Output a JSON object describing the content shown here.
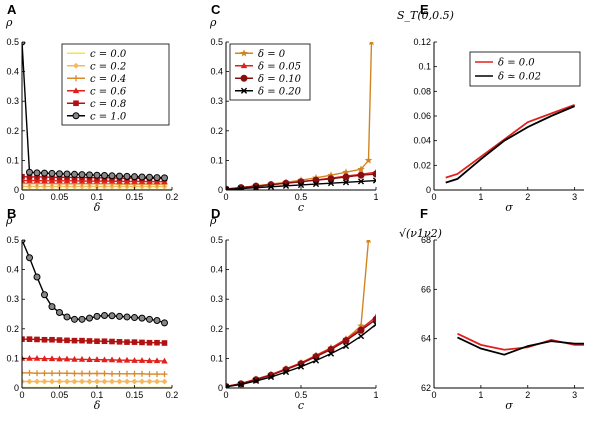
{
  "chart_data": [
    {
      "panel": "A",
      "type": "line",
      "ylabel": "ρ",
      "xlabel": "δ",
      "xlim": [
        0,
        0.2
      ],
      "ylim": [
        0,
        0.5
      ],
      "xticks": [
        0,
        0.05,
        0.1,
        0.15,
        0.2
      ],
      "xtick_labels": [
        "0",
        "0.05",
        "0.1",
        "0.15",
        "0.2"
      ],
      "yticks": [
        0,
        0.1,
        0.2,
        0.3,
        0.4,
        0.5
      ],
      "ytick_labels": [
        "0",
        "0.1",
        "0.2",
        "0.3",
        "0.4",
        "0.5"
      ],
      "legend": "top-right",
      "series": [
        {
          "name": "c = 0.0",
          "color": "#f5e63c",
          "marker": "none",
          "x": [
            0,
            0.005,
            0.2
          ],
          "y": [
            0.001,
            0.001,
            0.001
          ]
        },
        {
          "name": "c = 0.2",
          "color": "#f4b860",
          "marker": "diamond",
          "x": [
            0,
            0.01,
            0.02,
            0.03,
            0.04,
            0.05,
            0.06,
            0.07,
            0.08,
            0.09,
            0.1,
            0.11,
            0.12,
            0.13,
            0.14,
            0.15,
            0.16,
            0.17,
            0.18,
            0.19
          ],
          "y": [
            0.012,
            0.012,
            0.012,
            0.012,
            0.012,
            0.012,
            0.012,
            0.012,
            0.012,
            0.012,
            0.012,
            0.012,
            0.012,
            0.012,
            0.012,
            0.012,
            0.012,
            0.012,
            0.012,
            0.012
          ]
        },
        {
          "name": "c = 0.4",
          "color": "#d98b2b",
          "marker": "plus",
          "x": [
            0,
            0.01,
            0.02,
            0.03,
            0.04,
            0.05,
            0.06,
            0.07,
            0.08,
            0.09,
            0.1,
            0.11,
            0.12,
            0.13,
            0.14,
            0.15,
            0.16,
            0.17,
            0.18,
            0.19
          ],
          "y": [
            0.022,
            0.022,
            0.022,
            0.022,
            0.022,
            0.021,
            0.021,
            0.021,
            0.021,
            0.021,
            0.021,
            0.021,
            0.021,
            0.02,
            0.02,
            0.02,
            0.02,
            0.02,
            0.02,
            0.02
          ]
        },
        {
          "name": "c = 0.6",
          "color": "#e0201b",
          "marker": "triangle",
          "x": [
            0,
            0.01,
            0.02,
            0.03,
            0.04,
            0.05,
            0.06,
            0.07,
            0.08,
            0.09,
            0.1,
            0.11,
            0.12,
            0.13,
            0.14,
            0.15,
            0.16,
            0.17,
            0.18,
            0.19
          ],
          "y": [
            0.032,
            0.032,
            0.032,
            0.031,
            0.031,
            0.031,
            0.031,
            0.031,
            0.03,
            0.03,
            0.03,
            0.03,
            0.03,
            0.029,
            0.029,
            0.029,
            0.029,
            0.028,
            0.028,
            0.028
          ]
        },
        {
          "name": "c = 0.8",
          "color": "#b01212",
          "marker": "square",
          "x": [
            0,
            0.01,
            0.02,
            0.03,
            0.04,
            0.05,
            0.06,
            0.07,
            0.08,
            0.09,
            0.1,
            0.11,
            0.12,
            0.13,
            0.14,
            0.15,
            0.16,
            0.17,
            0.18,
            0.19
          ],
          "y": [
            0.045,
            0.044,
            0.044,
            0.044,
            0.043,
            0.043,
            0.043,
            0.042,
            0.042,
            0.042,
            0.041,
            0.041,
            0.041,
            0.04,
            0.04,
            0.04,
            0.039,
            0.039,
            0.039,
            0.038
          ]
        },
        {
          "name": "c = 1.0",
          "color": "#000000",
          "marker": "circle",
          "x": [
            0,
            0.01,
            0.02,
            0.03,
            0.04,
            0.05,
            0.06,
            0.07,
            0.08,
            0.09,
            0.1,
            0.11,
            0.12,
            0.13,
            0.14,
            0.15,
            0.16,
            0.17,
            0.18,
            0.19
          ],
          "y": [
            0.5,
            0.06,
            0.058,
            0.057,
            0.056,
            0.055,
            0.054,
            0.053,
            0.052,
            0.051,
            0.05,
            0.049,
            0.048,
            0.047,
            0.046,
            0.045,
            0.044,
            0.043,
            0.042,
            0.041
          ]
        }
      ]
    },
    {
      "panel": "B",
      "type": "line",
      "ylabel": "ρ",
      "xlabel": "δ",
      "xlim": [
        0,
        0.2
      ],
      "ylim": [
        0,
        0.5
      ],
      "xticks": [
        0,
        0.05,
        0.1,
        0.15,
        0.2
      ],
      "xtick_labels": [
        "0",
        "0.05",
        "0.1",
        "0.15",
        "0.2"
      ],
      "yticks": [
        0,
        0.1,
        0.2,
        0.3,
        0.4,
        0.5
      ],
      "ytick_labels": [
        "0",
        "0.1",
        "0.2",
        "0.3",
        "0.4",
        "0.5"
      ],
      "series": [
        {
          "color": "#f5e63c",
          "marker": "none",
          "x": [
            0,
            0.2
          ],
          "y": [
            0.001,
            0.001
          ]
        },
        {
          "color": "#f4b860",
          "marker": "diamond",
          "x": [
            0,
            0.01,
            0.02,
            0.03,
            0.04,
            0.05,
            0.06,
            0.07,
            0.08,
            0.09,
            0.1,
            0.11,
            0.12,
            0.13,
            0.14,
            0.15,
            0.16,
            0.17,
            0.18,
            0.19
          ],
          "y": [
            0.022,
            0.022,
            0.022,
            0.022,
            0.022,
            0.022,
            0.022,
            0.022,
            0.022,
            0.022,
            0.022,
            0.022,
            0.022,
            0.022,
            0.022,
            0.022,
            0.022,
            0.022,
            0.022,
            0.022
          ]
        },
        {
          "color": "#d98b2b",
          "marker": "plus",
          "x": [
            0,
            0.01,
            0.02,
            0.03,
            0.04,
            0.05,
            0.06,
            0.07,
            0.08,
            0.09,
            0.1,
            0.11,
            0.12,
            0.13,
            0.14,
            0.15,
            0.16,
            0.17,
            0.18,
            0.19
          ],
          "y": [
            0.051,
            0.051,
            0.05,
            0.05,
            0.05,
            0.05,
            0.05,
            0.049,
            0.049,
            0.049,
            0.049,
            0.049,
            0.048,
            0.048,
            0.048,
            0.048,
            0.048,
            0.047,
            0.047,
            0.047
          ]
        },
        {
          "color": "#e0201b",
          "marker": "triangle",
          "x": [
            0,
            0.01,
            0.02,
            0.03,
            0.04,
            0.05,
            0.06,
            0.07,
            0.08,
            0.09,
            0.1,
            0.11,
            0.12,
            0.13,
            0.14,
            0.15,
            0.16,
            0.17,
            0.18,
            0.19
          ],
          "y": [
            0.1,
            0.1,
            0.1,
            0.099,
            0.099,
            0.098,
            0.098,
            0.097,
            0.097,
            0.096,
            0.096,
            0.095,
            0.095,
            0.094,
            0.094,
            0.093,
            0.093,
            0.092,
            0.092,
            0.091
          ]
        },
        {
          "color": "#b01212",
          "marker": "square",
          "x": [
            0,
            0.01,
            0.02,
            0.03,
            0.04,
            0.05,
            0.06,
            0.07,
            0.08,
            0.09,
            0.1,
            0.11,
            0.12,
            0.13,
            0.14,
            0.15,
            0.16,
            0.17,
            0.18,
            0.19
          ],
          "y": [
            0.165,
            0.165,
            0.164,
            0.163,
            0.163,
            0.162,
            0.161,
            0.16,
            0.16,
            0.159,
            0.158,
            0.158,
            0.157,
            0.156,
            0.155,
            0.155,
            0.154,
            0.153,
            0.153,
            0.152
          ]
        },
        {
          "color": "#000000",
          "marker": "circle",
          "x": [
            0,
            0.01,
            0.02,
            0.03,
            0.04,
            0.05,
            0.06,
            0.07,
            0.08,
            0.09,
            0.1,
            0.11,
            0.12,
            0.13,
            0.14,
            0.15,
            0.16,
            0.17,
            0.18,
            0.19
          ],
          "y": [
            0.5,
            0.44,
            0.375,
            0.315,
            0.275,
            0.255,
            0.24,
            0.232,
            0.232,
            0.236,
            0.242,
            0.245,
            0.244,
            0.242,
            0.24,
            0.238,
            0.236,
            0.232,
            0.228,
            0.22
          ]
        }
      ]
    },
    {
      "panel": "C",
      "type": "line",
      "ylabel": "ρ",
      "xlabel": "c",
      "xlim": [
        0,
        1
      ],
      "ylim": [
        0,
        0.5
      ],
      "xticks": [
        0,
        0.5,
        1
      ],
      "xtick_labels": [
        "0",
        "0.5",
        "1"
      ],
      "yticks": [
        0,
        0.1,
        0.2,
        0.3,
        0.4,
        0.5
      ],
      "ytick_labels": [
        "0",
        "0.1",
        "0.2",
        "0.3",
        "0.4",
        "0.5"
      ],
      "legend": "top-left",
      "series": [
        {
          "name": "δ = 0",
          "color": "#d08620",
          "marker": "star",
          "x": [
            0,
            0.1,
            0.2,
            0.3,
            0.4,
            0.5,
            0.6,
            0.7,
            0.8,
            0.9,
            0.95,
            0.97
          ],
          "y": [
            0.002,
            0.008,
            0.014,
            0.02,
            0.026,
            0.033,
            0.041,
            0.05,
            0.06,
            0.07,
            0.1,
            0.5
          ]
        },
        {
          "name": "δ = 0.05",
          "color": "#e0201b",
          "marker": "triangle",
          "x": [
            0,
            0.1,
            0.2,
            0.3,
            0.4,
            0.5,
            0.6,
            0.7,
            0.8,
            0.9,
            1
          ],
          "y": [
            0.003,
            0.008,
            0.013,
            0.018,
            0.023,
            0.028,
            0.034,
            0.04,
            0.047,
            0.053,
            0.06
          ]
        },
        {
          "name": "δ = 0.10",
          "color": "#8b0e0e",
          "marker": "circle",
          "x": [
            0,
            0.1,
            0.2,
            0.3,
            0.4,
            0.5,
            0.6,
            0.7,
            0.8,
            0.9,
            1
          ],
          "y": [
            0.003,
            0.008,
            0.013,
            0.018,
            0.023,
            0.028,
            0.033,
            0.038,
            0.044,
            0.05,
            0.054
          ]
        },
        {
          "name": "δ = 0.20",
          "color": "#000000",
          "marker": "x",
          "x": [
            0,
            0.1,
            0.2,
            0.3,
            0.4,
            0.5,
            0.6,
            0.7,
            0.8,
            0.9,
            1
          ],
          "y": [
            0.002,
            0.005,
            0.008,
            0.011,
            0.014,
            0.017,
            0.02,
            0.023,
            0.026,
            0.029,
            0.032
          ]
        }
      ]
    },
    {
      "panel": "D",
      "type": "line",
      "ylabel": "ρ",
      "xlabel": "c",
      "xlim": [
        0,
        1
      ],
      "ylim": [
        0,
        0.5
      ],
      "xticks": [
        0,
        0.5,
        1
      ],
      "xtick_labels": [
        "0",
        "0.5",
        "1"
      ],
      "yticks": [
        0,
        0.1,
        0.2,
        0.3,
        0.4,
        0.5
      ],
      "ytick_labels": [
        "0",
        "0.1",
        "0.2",
        "0.3",
        "0.4",
        "0.5"
      ],
      "series": [
        {
          "color": "#d08620",
          "marker": "star",
          "x": [
            0,
            0.1,
            0.2,
            0.3,
            0.4,
            0.5,
            0.6,
            0.7,
            0.8,
            0.9,
            0.95
          ],
          "y": [
            0.005,
            0.015,
            0.03,
            0.045,
            0.065,
            0.085,
            0.11,
            0.135,
            0.165,
            0.21,
            0.5
          ]
        },
        {
          "color": "#e0201b",
          "marker": "triangle",
          "x": [
            0,
            0.1,
            0.2,
            0.3,
            0.4,
            0.5,
            0.6,
            0.7,
            0.8,
            0.9,
            1
          ],
          "y": [
            0.005,
            0.015,
            0.03,
            0.045,
            0.065,
            0.085,
            0.11,
            0.135,
            0.165,
            0.2,
            0.24
          ]
        },
        {
          "color": "#8b0e0e",
          "marker": "circle",
          "x": [
            0,
            0.1,
            0.2,
            0.3,
            0.4,
            0.5,
            0.6,
            0.7,
            0.8,
            0.9,
            1
          ],
          "y": [
            0.005,
            0.014,
            0.028,
            0.043,
            0.062,
            0.082,
            0.106,
            0.13,
            0.16,
            0.195,
            0.232
          ]
        },
        {
          "color": "#000000",
          "marker": "x",
          "x": [
            0,
            0.1,
            0.2,
            0.3,
            0.4,
            0.5,
            0.6,
            0.7,
            0.8,
            0.9,
            1
          ],
          "y": [
            0.004,
            0.012,
            0.024,
            0.037,
            0.054,
            0.072,
            0.093,
            0.116,
            0.142,
            0.175,
            0.215
          ]
        }
      ]
    },
    {
      "panel": "E",
      "type": "line",
      "ylabel": "S_T(0,0.5)",
      "xlabel": "σ",
      "xlim": [
        0,
        3.2
      ],
      "ylim": [
        0,
        0.12
      ],
      "xticks": [
        0,
        1,
        2,
        3
      ],
      "xtick_labels": [
        "0",
        "1",
        "2",
        "3"
      ],
      "yticks": [
        0,
        0.02,
        0.04,
        0.06,
        0.08,
        0.1,
        0.12
      ],
      "ytick_labels": [
        "0",
        "0.02",
        "0.04",
        "0.06",
        "0.08",
        "0.1",
        "0.12"
      ],
      "legend": "top-right",
      "series": [
        {
          "name": "δ = 0.0",
          "color": "#e0201b",
          "marker": "none",
          "x": [
            0.25,
            0.5,
            1,
            1.5,
            2,
            2.5,
            3
          ],
          "y": [
            0.01,
            0.013,
            0.027,
            0.041,
            0.055,
            0.062,
            0.069
          ]
        },
        {
          "name": "δ ≃ 0.02",
          "color": "#000000",
          "marker": "none",
          "x": [
            0.25,
            0.5,
            1,
            1.5,
            2,
            2.5,
            3
          ],
          "y": [
            0.006,
            0.009,
            0.025,
            0.04,
            0.051,
            0.06,
            0.068
          ]
        }
      ]
    },
    {
      "panel": "F",
      "type": "line",
      "ylabel": "√(ν1ν2)",
      "xlabel": "σ",
      "xlim": [
        0,
        3.2
      ],
      "ylim": [
        62,
        68
      ],
      "xticks": [
        0,
        1,
        2,
        3
      ],
      "xtick_labels": [
        "0",
        "1",
        "2",
        "3"
      ],
      "yticks": [
        62,
        64,
        66,
        68
      ],
      "ytick_labels": [
        "62",
        "64",
        "66",
        "68"
      ],
      "series": [
        {
          "color": "#e0201b",
          "marker": "none",
          "x": [
            0.5,
            1,
            1.5,
            2,
            2.5,
            3,
            3.2
          ],
          "y": [
            64.2,
            63.75,
            63.55,
            63.65,
            63.95,
            63.75,
            63.75
          ]
        },
        {
          "color": "#000000",
          "marker": "none",
          "x": [
            0.5,
            1,
            1.5,
            2,
            2.5,
            3,
            3.2
          ],
          "y": [
            64.05,
            63.6,
            63.35,
            63.7,
            63.9,
            63.8,
            63.8
          ]
        }
      ]
    }
  ]
}
